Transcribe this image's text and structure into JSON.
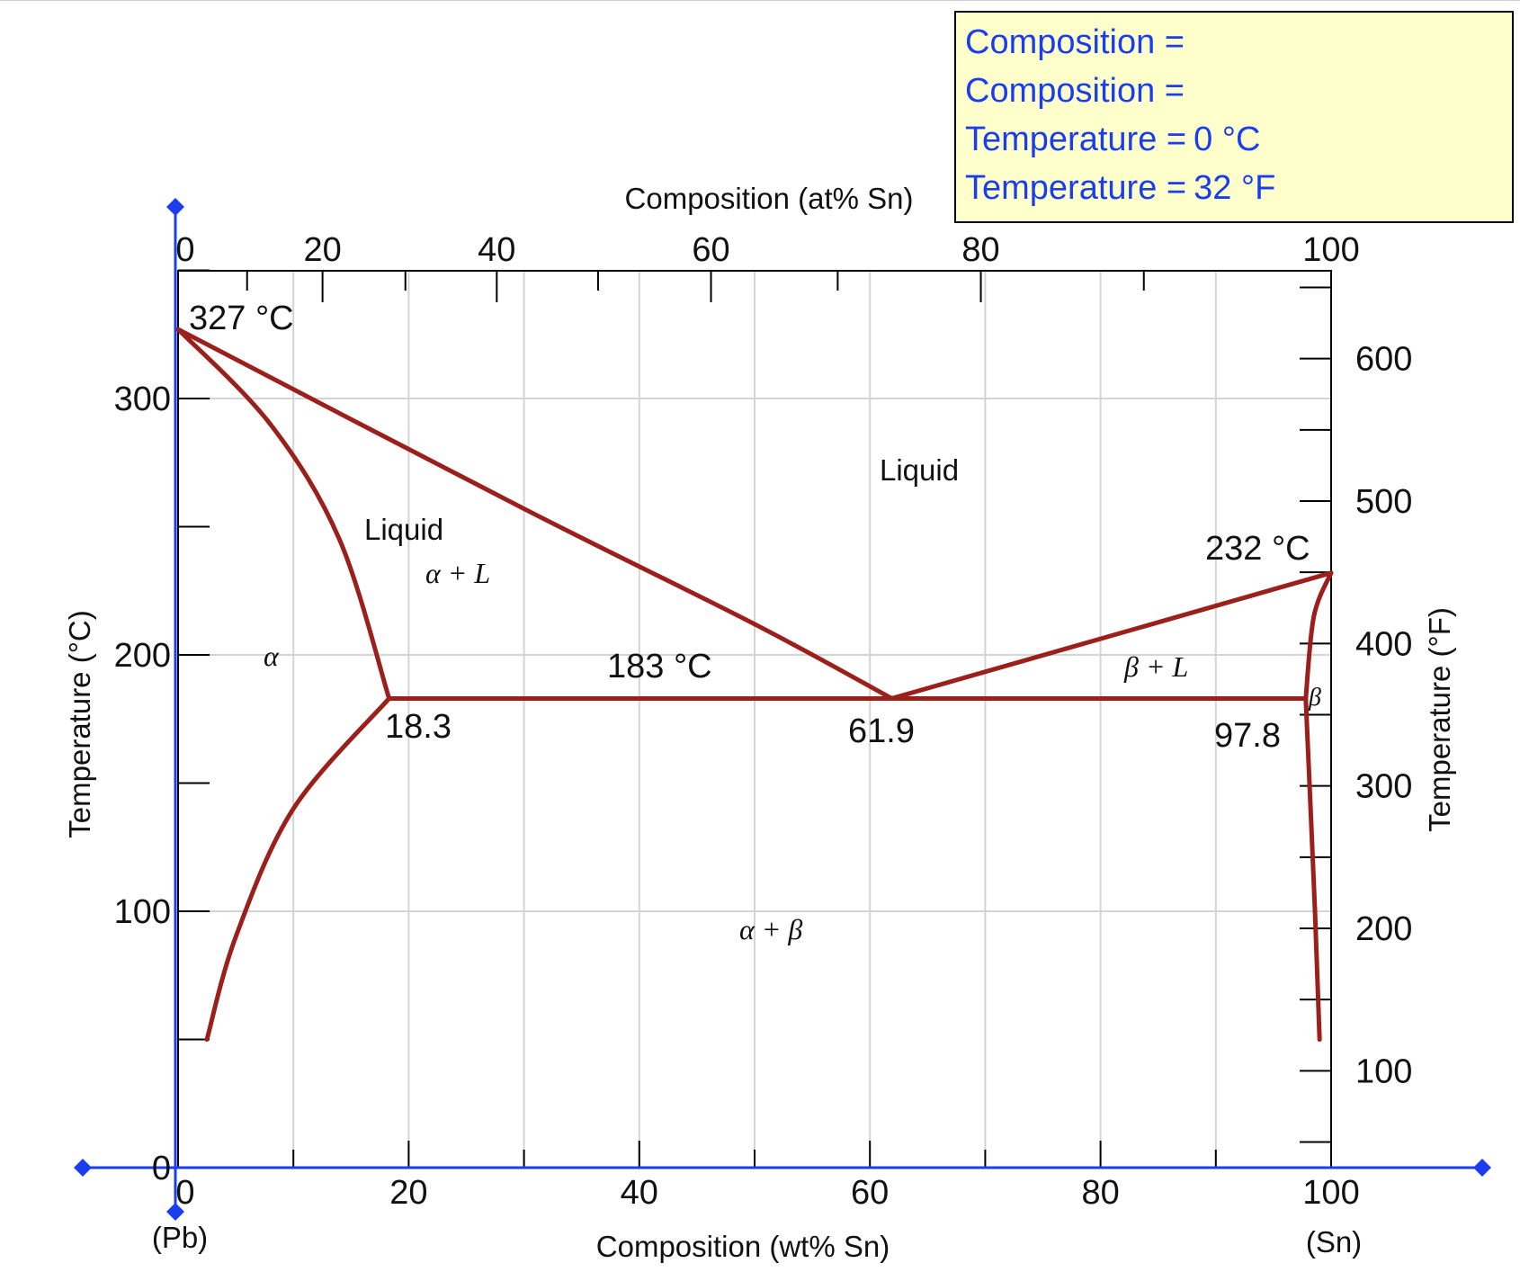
{
  "info_panel": {
    "lines": [
      {
        "label": "Composition =",
        "value": ""
      },
      {
        "label": "Composition =",
        "value": ""
      },
      {
        "label": "Temperature =",
        "value": "0 °C"
      },
      {
        "label": "Temperature =",
        "value": "32 °F"
      }
    ]
  },
  "axes": {
    "bottom": {
      "label": "Composition (wt% Sn)",
      "ticks": [
        "0",
        "20",
        "40",
        "60",
        "80",
        "100"
      ],
      "end_left": "(Pb)",
      "end_right": "(Sn)"
    },
    "top": {
      "label": "Composition (at% Sn)",
      "ticks": [
        "0",
        "20",
        "40",
        "60",
        "80",
        "100"
      ]
    },
    "left": {
      "label": "Temperature (°C)",
      "ticks": [
        "0",
        "100",
        "200",
        "300"
      ]
    },
    "right": {
      "label": "Temperature (°F)",
      "ticks": [
        "100",
        "200",
        "300",
        "400",
        "500",
        "600"
      ]
    }
  },
  "annotations": {
    "pb_melt": "327 °C",
    "sn_melt": "232 °C",
    "eutectic_temp": "183 °C",
    "alpha_max": "18.3",
    "eutectic_comp": "61.9",
    "beta_max": "97.8"
  },
  "regions": {
    "liquid_top": "Liquid",
    "liquid_left": "Liquid",
    "alpha_plus_liquid": "α + L",
    "alpha": "α",
    "beta_plus_liquid": "β + L",
    "beta": "β",
    "alpha_plus_beta": "α + β"
  },
  "colors": {
    "phase_boundary": "#9b1f1a",
    "cursor_axis": "#1a3df0",
    "grid": "#d4d4d4",
    "info_bg": "#ffffcc",
    "info_text": "#1a3df0"
  },
  "chart_data": {
    "type": "phase-diagram",
    "xlim": [
      0,
      100
    ],
    "ylim": [
      0,
      350
    ],
    "eutectic": {
      "composition_wt": 61.9,
      "temperature_c": 183
    },
    "melting_points": {
      "Pb": 327,
      "Sn": 232
    },
    "max_solubility": {
      "alpha": 18.3,
      "beta": 97.8
    },
    "top_axis_at_marks": [
      0,
      20,
      40,
      60,
      80,
      100
    ],
    "right_axis_f_marks": [
      100,
      200,
      300,
      400,
      500,
      600
    ],
    "boundaries": {
      "liquidus_alpha": [
        [
          0,
          327
        ],
        [
          30,
          257
        ],
        [
          50,
          212
        ],
        [
          61.9,
          183
        ]
      ],
      "liquidus_beta": [
        [
          61.9,
          183
        ],
        [
          100,
          232
        ]
      ],
      "solidus_alpha": [
        [
          0,
          327
        ],
        [
          8,
          290
        ],
        [
          14,
          245
        ],
        [
          18.3,
          183
        ]
      ],
      "solvus_alpha": [
        [
          18.3,
          183
        ],
        [
          10,
          140
        ],
        [
          5,
          90
        ],
        [
          2.5,
          50
        ]
      ],
      "solidus_beta": [
        [
          100,
          232
        ],
        [
          98.5,
          215
        ],
        [
          97.8,
          183
        ]
      ],
      "solvus_beta": [
        [
          97.8,
          183
        ],
        [
          98.6,
          100
        ],
        [
          99,
          50
        ]
      ],
      "eutectic_line": [
        [
          18.3,
          183
        ],
        [
          97.8,
          183
        ]
      ]
    }
  }
}
